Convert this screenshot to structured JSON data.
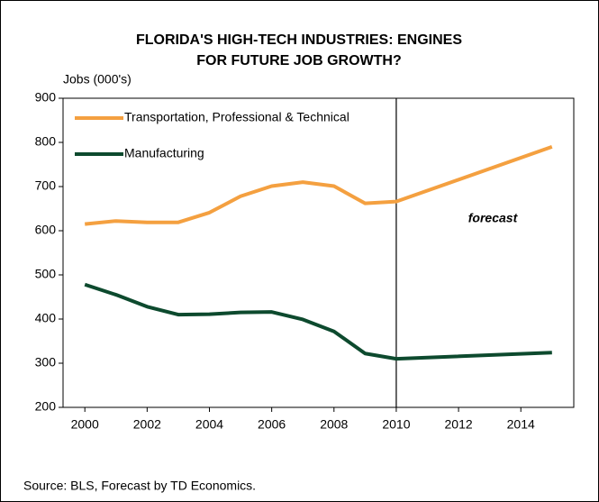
{
  "chart_data": {
    "type": "line",
    "title": [
      "FLORIDA'S HIGH-TECH INDUSTRIES: ENGINES",
      "FOR FUTURE JOB GROWTH?"
    ],
    "y_label": "Jobs (000's)",
    "source": "Source: BLS, Forecast by TD Economics.",
    "annotation": "forecast",
    "forecast_start": 2010,
    "x": [
      2000,
      2001,
      2002,
      2003,
      2004,
      2005,
      2006,
      2007,
      2008,
      2009,
      2010,
      2015
    ],
    "series": [
      {
        "name": "Transportation, Professional & Technical",
        "color": "#f4a040",
        "values": [
          615,
          622,
          619,
          619,
          641,
          678,
          701,
          710,
          701,
          662,
          666,
          790
        ]
      },
      {
        "name": "Manufacturing",
        "color": "#0d4a2e",
        "values": [
          478,
          455,
          428,
          410,
          411,
          415,
          416,
          399,
          372,
          322,
          310,
          324
        ]
      }
    ],
    "xlim": [
      1999.3,
      2015.7
    ],
    "xticks": [
      2000,
      2002,
      2004,
      2006,
      2008,
      2010,
      2012,
      2014
    ],
    "ylim": [
      200,
      900
    ],
    "yticks": [
      200,
      300,
      400,
      500,
      600,
      700,
      800,
      900
    ],
    "legend": "upper left",
    "grid": false
  }
}
